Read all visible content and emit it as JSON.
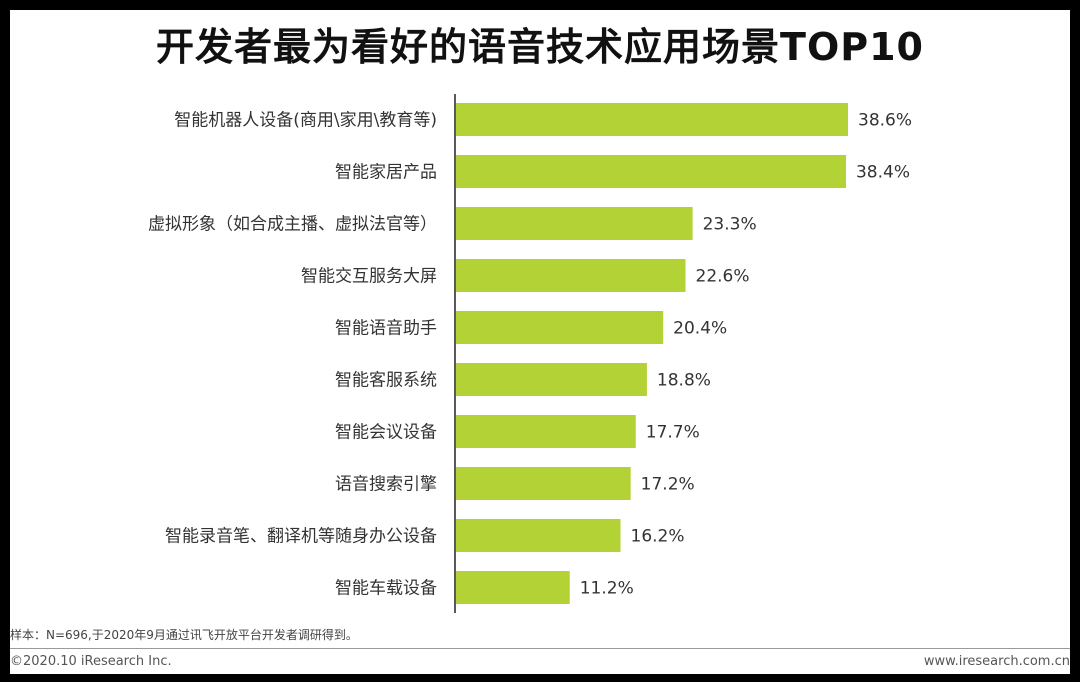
{
  "chart_data": {
    "type": "bar",
    "orientation": "horizontal",
    "title": "开发者最为看好的语音技术应用场景TOP10",
    "categories": [
      "智能机器人设备(商用\\家用\\教育等)",
      "智能家居产品",
      "虚拟形象（如合成主播、虚拟法官等）",
      "智能交互服务大屏",
      "智能语音助手",
      "智能客服系统",
      "智能会议设备",
      "语音搜索引擎",
      "智能录音笔、翻译机等随身办公设备",
      "智能车载设备"
    ],
    "values": [
      38.6,
      38.4,
      23.3,
      22.6,
      20.4,
      18.8,
      17.7,
      17.2,
      16.2,
      11.2
    ],
    "value_labels": [
      "38.6%",
      "38.4%",
      "23.3%",
      "22.6%",
      "20.4%",
      "18.8%",
      "17.7%",
      "17.2%",
      "16.2%",
      "11.2%"
    ],
    "xlim": [
      0,
      45
    ],
    "grid": false,
    "legend": "none",
    "bar_color": "#b2d235"
  },
  "note": "样本：N=696,于2020年9月通过讯飞开放平台开发者调研得到。",
  "footer": {
    "copyright": "©2020.10 iResearch Inc.",
    "website": "www.iresearch.com.cn"
  }
}
